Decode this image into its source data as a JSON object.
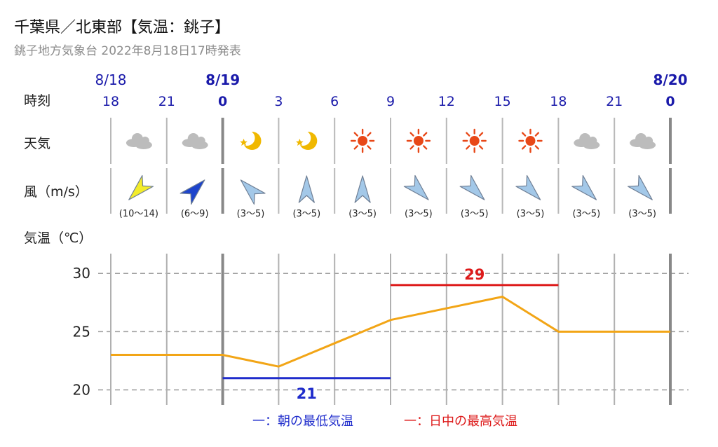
{
  "header": {
    "title": "千葉県／北東部【気温：銚子】",
    "subtitle": "銚子地方気象台 2022年8月18日17時発表"
  },
  "labels": {
    "time": "時刻",
    "weather": "天気",
    "wind": "風（m/s）",
    "temperature": "気温（℃）"
  },
  "colors": {
    "accent_blue": "#1a1aaa",
    "low_line": "#1f2ccc",
    "high_line": "#dd1a1a",
    "temp_line": "#f2a516",
    "grid": "#999999",
    "sun": "#e84818",
    "moon": "#f0b800",
    "cloud": "#bcbcbc",
    "wind_yellow": "#f3ec2a",
    "wind_blue": "#1d44cc",
    "wind_light": "#a3c8e8"
  },
  "chart_data": {
    "type": "line",
    "title": "千葉県／北東部【気温：銚子】",
    "subtitle": "銚子地方気象台 2022年8月18日17時発表",
    "dates": [
      {
        "label": "8/18",
        "at_index": 0,
        "bold": false
      },
      {
        "label": "8/19",
        "at_index": 2,
        "bold": true
      },
      {
        "label": "8/20",
        "at_index": 10,
        "bold": true
      }
    ],
    "x": [
      "18",
      "21",
      "0",
      "3",
      "6",
      "9",
      "12",
      "15",
      "18",
      "21",
      "0"
    ],
    "weather": [
      "cloudy",
      "cloudy",
      "clear-night",
      "clear-night",
      "sunny",
      "sunny",
      "sunny",
      "sunny",
      "cloudy",
      "cloudy"
    ],
    "weather_icons": [
      "cloud-icon",
      "cloud-icon",
      "moon-icon",
      "moon-icon",
      "sun-icon",
      "sun-icon",
      "sun-icon",
      "sun-icon",
      "cloud-icon",
      "cloud-icon"
    ],
    "wind": [
      {
        "range": "(10～14)",
        "from": "SW",
        "level": "strong"
      },
      {
        "range": "(6～9)",
        "from": "NE",
        "level": "moderate"
      },
      {
        "range": "(3～5)",
        "from": "NW",
        "level": "light"
      },
      {
        "range": "(3～5)",
        "from": "N",
        "level": "light"
      },
      {
        "range": "(3～5)",
        "from": "N",
        "level": "light"
      },
      {
        "range": "(3～5)",
        "from": "SE",
        "level": "light"
      },
      {
        "range": "(3～5)",
        "from": "SE",
        "level": "light"
      },
      {
        "range": "(3～5)",
        "from": "SE",
        "level": "light"
      },
      {
        "range": "(3～5)",
        "from": "SE",
        "level": "light"
      },
      {
        "range": "(3～5)",
        "from": "SE",
        "level": "light"
      }
    ],
    "series": [
      {
        "values": [
          23,
          23,
          23,
          22,
          24,
          26,
          27,
          28,
          25,
          25,
          25
        ]
      }
    ],
    "min_temp": {
      "value": 21,
      "label": "21",
      "from_index": 2,
      "to_index": 5
    },
    "max_temp": {
      "value": 29,
      "label": "29",
      "from_index": 5,
      "to_index": 8
    },
    "y_ticks": [
      "20",
      "25",
      "30"
    ],
    "ylabel": "気温（℃）",
    "ylim": [
      18.7,
      31.7
    ],
    "grid": true,
    "legend": [
      {
        "label": "一：朝の最低気温",
        "color": "#1f2ccc"
      },
      {
        "label": "一：日中の最高気温",
        "color": "#dd1a1a"
      }
    ],
    "legend_position": "bottom-center"
  }
}
